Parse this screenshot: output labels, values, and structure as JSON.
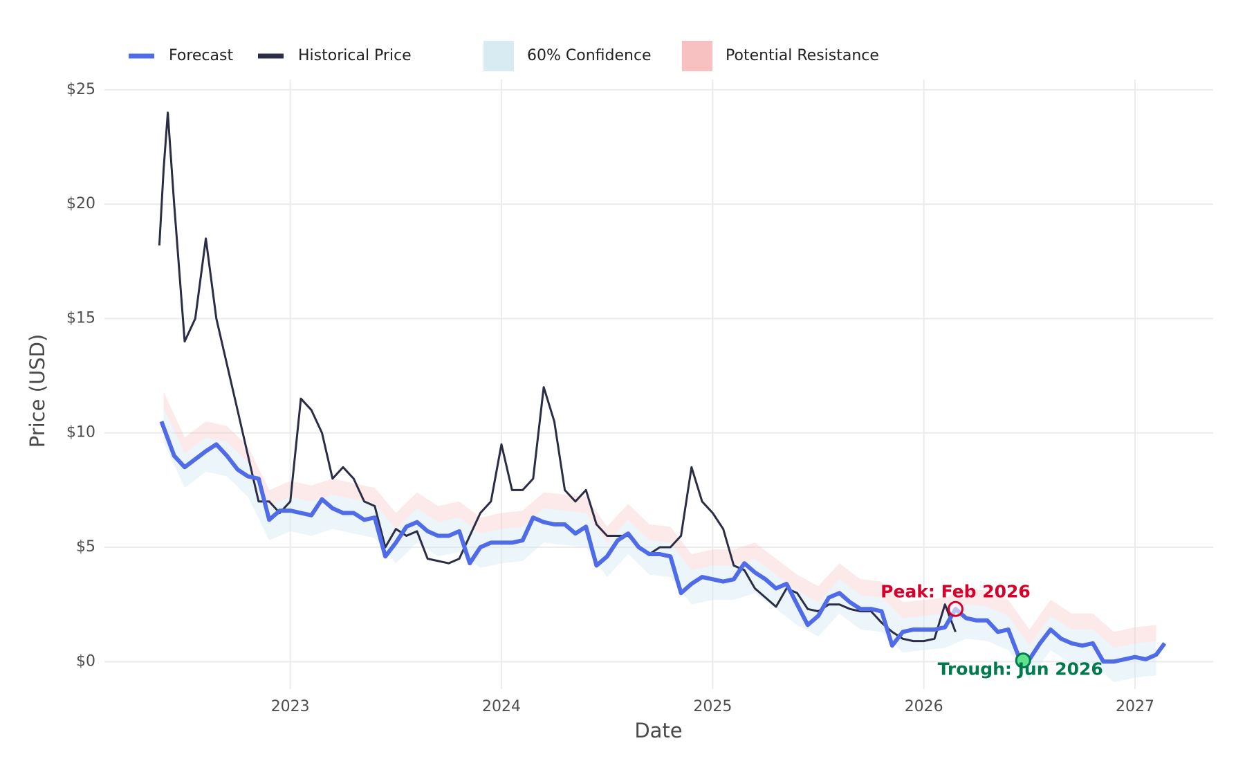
{
  "chart_data": {
    "type": "line",
    "xlabel": "Date",
    "ylabel": "Price (USD)",
    "xlim": [
      2022.12,
      2027.37
    ],
    "ylim": [
      -1.2,
      25.45
    ],
    "xticks": [
      2023,
      2024,
      2025,
      2026,
      2027
    ],
    "yticks": [
      {
        "value": 0,
        "label": "$0"
      },
      {
        "value": 5,
        "label": "$5"
      },
      {
        "value": 10,
        "label": "$10"
      },
      {
        "value": 15,
        "label": "$15"
      },
      {
        "value": 20,
        "label": "$20"
      },
      {
        "value": 25,
        "label": "$25"
      }
    ],
    "grid": true,
    "legend": "top left",
    "series": [
      {
        "name": "Forecast",
        "color": "#4f6be8",
        "x": [
          2022.39,
          2022.45,
          2022.5,
          2022.6,
          2022.65,
          2022.7,
          2022.75,
          2022.8,
          2022.85,
          2022.9,
          2022.95,
          2023.0,
          2023.05,
          2023.1,
          2023.15,
          2023.2,
          2023.25,
          2023.3,
          2023.35,
          2023.4,
          2023.45,
          2023.5,
          2023.55,
          2023.6,
          2023.65,
          2023.7,
          2023.75,
          2023.8,
          2023.85,
          2023.9,
          2023.95,
          2024.0,
          2024.05,
          2024.1,
          2024.15,
          2024.2,
          2024.25,
          2024.3,
          2024.35,
          2024.4,
          2024.45,
          2024.5,
          2024.55,
          2024.6,
          2024.65,
          2024.7,
          2024.75,
          2024.8,
          2024.85,
          2024.9,
          2024.95,
          2025.0,
          2025.05,
          2025.1,
          2025.15,
          2025.2,
          2025.25,
          2025.3,
          2025.35,
          2025.4,
          2025.45,
          2025.5,
          2025.55,
          2025.6,
          2025.65,
          2025.7,
          2025.75,
          2025.8,
          2025.85,
          2025.9,
          2025.95,
          2026.0,
          2026.05,
          2026.1,
          2026.15,
          2026.2,
          2026.25,
          2026.3,
          2026.35,
          2026.4,
          2026.45,
          2026.5,
          2026.55,
          2026.6,
          2026.65,
          2026.7,
          2026.75,
          2026.8,
          2026.85,
          2026.9,
          2026.95,
          2027.0,
          2027.05,
          2027.1,
          2027.14
        ],
        "values": [
          10.5,
          9,
          8.5,
          9.2,
          9.5,
          9,
          8.4,
          8.1,
          8,
          6.2,
          6.6,
          6.6,
          6.5,
          6.4,
          7.1,
          6.7,
          6.5,
          6.5,
          6.2,
          6.3,
          4.6,
          5.2,
          5.9,
          6.1,
          5.7,
          5.5,
          5.5,
          5.7,
          4.3,
          5,
          5.2,
          5.2,
          5.2,
          5.3,
          6.3,
          6.1,
          6,
          6,
          5.6,
          5.9,
          4.2,
          4.6,
          5.3,
          5.6,
          5,
          4.7,
          4.7,
          4.6,
          3,
          3.4,
          3.7,
          3.6,
          3.5,
          3.6,
          4.3,
          3.9,
          3.6,
          3.2,
          3.4,
          2.5,
          1.6,
          2,
          2.8,
          3,
          2.6,
          2.3,
          2.3,
          2.2,
          0.7,
          1.3,
          1.4,
          1.4,
          1.4,
          1.5,
          2.3,
          1.9,
          1.8,
          1.8,
          1.3,
          1.4,
          0.2,
          0.1,
          0.8,
          1.4,
          1,
          0.8,
          0.7,
          0.8,
          0,
          0,
          0.1,
          0.2,
          0.1,
          0.3,
          0.8
        ]
      },
      {
        "name": "Historical Price",
        "color": "#2a2d45",
        "x": [
          2022.38,
          2022.4,
          2022.42,
          2022.45,
          2022.5,
          2022.55,
          2022.6,
          2022.65,
          2022.7,
          2022.75,
          2022.8,
          2022.85,
          2022.9,
          2022.95,
          2023.0,
          2023.05,
          2023.1,
          2023.15,
          2023.2,
          2023.25,
          2023.3,
          2023.35,
          2023.4,
          2023.45,
          2023.5,
          2023.55,
          2023.6,
          2023.65,
          2023.7,
          2023.75,
          2023.8,
          2023.85,
          2023.9,
          2023.95,
          2024.0,
          2024.05,
          2024.1,
          2024.15,
          2024.2,
          2024.25,
          2024.3,
          2024.35,
          2024.4,
          2024.45,
          2024.5,
          2024.55,
          2024.6,
          2024.65,
          2024.7,
          2024.75,
          2024.8,
          2024.85,
          2024.9,
          2024.95,
          2025.0,
          2025.05,
          2025.1,
          2025.15,
          2025.2,
          2025.25,
          2025.3,
          2025.35,
          2025.4,
          2025.45,
          2025.5,
          2025.55,
          2025.6,
          2025.65,
          2025.7,
          2025.75,
          2025.8,
          2025.85,
          2025.9,
          2025.95,
          2026.0,
          2026.05,
          2026.1,
          2026.15
        ],
        "values": [
          18.2,
          21.5,
          24,
          20,
          14,
          15,
          18.5,
          15,
          13,
          11,
          9,
          7,
          7,
          6.5,
          7,
          11.5,
          11,
          10,
          8,
          8.5,
          8,
          7,
          6.8,
          5,
          5.8,
          5.5,
          5.7,
          4.5,
          4.4,
          4.3,
          4.5,
          5.5,
          6.5,
          7,
          9.5,
          7.5,
          7.5,
          8,
          12,
          10.5,
          7.5,
          7,
          7.5,
          6,
          5.5,
          5.5,
          5.5,
          5,
          4.7,
          5,
          5,
          5.5,
          8.5,
          7,
          6.5,
          5.8,
          4.2,
          4,
          3.2,
          2.8,
          2.4,
          3.2,
          3,
          2.3,
          2.2,
          2.5,
          2.5,
          2.3,
          2.2,
          2.2,
          1.7,
          1.3,
          1,
          0.9,
          0.9,
          1,
          2.5,
          1.3
        ]
      }
    ],
    "bands": [
      {
        "name": "60% Confidence",
        "color": "#d4e9f2",
        "x": [
          2022.4,
          2022.5,
          2022.6,
          2022.7,
          2022.8,
          2022.9,
          2023.0,
          2023.1,
          2023.2,
          2023.3,
          2023.4,
          2023.5,
          2023.6,
          2023.7,
          2023.8,
          2023.9,
          2024.0,
          2024.1,
          2024.2,
          2024.3,
          2024.4,
          2024.5,
          2024.6,
          2024.7,
          2024.8,
          2024.9,
          2025.0,
          2025.1,
          2025.2,
          2025.3,
          2025.4,
          2025.5,
          2025.6,
          2025.7,
          2025.8,
          2025.9,
          2026.0,
          2026.1,
          2026.2,
          2026.3,
          2026.4,
          2026.5,
          2026.6,
          2026.7,
          2026.8,
          2026.9,
          2027.0,
          2027.1
        ],
        "lower": [
          9.6,
          7.6,
          8.3,
          8.1,
          7.2,
          5.3,
          5.7,
          5.5,
          5.8,
          5.6,
          5.4,
          4.3,
          5.2,
          4.6,
          4.8,
          4.1,
          4.3,
          4.4,
          5.2,
          5.1,
          5.0,
          3.7,
          4.7,
          3.8,
          3.7,
          2.5,
          2.7,
          2.7,
          3.0,
          2.3,
          1.6,
          1.1,
          2.1,
          1.4,
          1.3,
          0.4,
          0.5,
          0.6,
          1.0,
          0.9,
          0.5,
          -0.8,
          0.5,
          -0.1,
          -0.1,
          -0.9,
          -0.7,
          -0.6
        ],
        "upper": [
          11.1,
          9.1,
          9.8,
          9.6,
          8.7,
          6.8,
          7.2,
          7.0,
          7.3,
          7.1,
          6.9,
          5.8,
          6.7,
          6.1,
          6.3,
          5.6,
          5.8,
          5.9,
          6.7,
          6.6,
          6.5,
          5.2,
          6.2,
          5.3,
          5.2,
          4.0,
          4.2,
          4.2,
          4.5,
          3.8,
          3.1,
          2.6,
          3.6,
          2.9,
          2.8,
          1.9,
          2.0,
          2.1,
          2.5,
          2.4,
          2.0,
          0.7,
          2.0,
          1.4,
          1.4,
          0.6,
          0.8,
          0.9
        ]
      },
      {
        "name": "Potential Resistance",
        "color": "#f7c1c1",
        "x": [
          2022.4,
          2022.5,
          2022.6,
          2022.7,
          2022.8,
          2022.9,
          2023.0,
          2023.1,
          2023.2,
          2023.3,
          2023.4,
          2023.5,
          2023.6,
          2023.7,
          2023.8,
          2023.9,
          2024.0,
          2024.1,
          2024.2,
          2024.3,
          2024.4,
          2024.5,
          2024.6,
          2024.7,
          2024.8,
          2024.9,
          2025.0,
          2025.1,
          2025.2,
          2025.3,
          2025.4,
          2025.5,
          2025.6,
          2025.7,
          2025.8,
          2025.9,
          2026.0,
          2026.1,
          2026.2,
          2026.3,
          2026.4,
          2026.5,
          2026.6,
          2026.7,
          2026.8,
          2026.9,
          2027.0,
          2027.1
        ],
        "lower": [
          11.1,
          9.1,
          9.8,
          9.6,
          8.7,
          6.8,
          7.2,
          7.0,
          7.3,
          7.1,
          6.9,
          5.8,
          6.7,
          6.1,
          6.3,
          5.6,
          5.8,
          5.9,
          6.7,
          6.6,
          6.5,
          5.2,
          6.2,
          5.3,
          5.2,
          4.0,
          4.2,
          4.2,
          4.5,
          3.8,
          3.1,
          2.6,
          3.6,
          2.9,
          2.8,
          1.9,
          2.0,
          2.1,
          2.5,
          2.4,
          2.0,
          0.7,
          2.0,
          1.4,
          1.4,
          0.6,
          0.8,
          0.9
        ],
        "upper": [
          11.8,
          9.8,
          10.5,
          10.3,
          9.4,
          7.5,
          7.9,
          7.7,
          8.0,
          7.8,
          7.6,
          6.5,
          7.4,
          6.8,
          7.0,
          6.3,
          6.5,
          6.6,
          7.4,
          7.3,
          7.2,
          5.9,
          6.9,
          6.0,
          5.9,
          4.7,
          4.9,
          4.9,
          5.2,
          4.5,
          3.8,
          3.3,
          4.3,
          3.6,
          3.5,
          2.6,
          2.7,
          2.8,
          3.2,
          3.1,
          2.7,
          1.4,
          2.7,
          2.1,
          2.1,
          1.3,
          1.5,
          1.6
        ]
      }
    ],
    "annotations": [
      {
        "text": "Peak: Feb 2026",
        "x": 2026.15,
        "y": 2.3,
        "color": "#d6002a"
      },
      {
        "text": "Trough: Jun 2026",
        "x": 2026.47,
        "y": 0.05,
        "color": "#007a4d"
      }
    ]
  }
}
